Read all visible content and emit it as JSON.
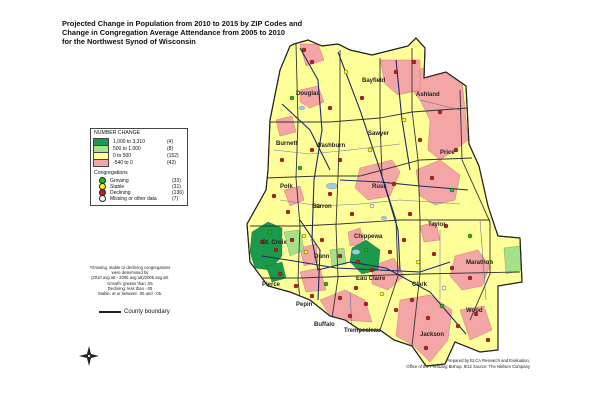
{
  "title": {
    "line1": "Projected Change in Population from 2010 to 2015 by ZIP Codes and",
    "line2": "Change in Congregation Average Attendance from 2005 to 2010",
    "line3": "for the Northwest Synod of Wisconsin"
  },
  "legend": {
    "number_change_heading": "NUMBER CHANGE",
    "classes": [
      {
        "range": "1,000  to  3,310",
        "count": "(4)",
        "color": "#1a9a4a"
      },
      {
        "range": "500  to  1,000",
        "count": "(8)",
        "color": "#a6e08a"
      },
      {
        "range": "0  to  500",
        "count": "(152)",
        "color": "#ffff99"
      },
      {
        "range": "-540  to  0",
        "count": "(42)",
        "color": "#f4a6a6"
      }
    ],
    "congregations_heading": "Congregations",
    "congregations": [
      {
        "label": "Growing",
        "count": "(33)",
        "color": "#22bb22"
      },
      {
        "label": "Stable",
        "count": "(31)",
        "color": "#ffff00"
      },
      {
        "label": "Declining",
        "count": "(136)",
        "color": "#c81e1e"
      },
      {
        "label": "Missing or other data",
        "count": "(7)",
        "color": "#ffffff"
      }
    ]
  },
  "footnote": [
    "*Growing, stable or declining congregations",
    "were determined by",
    "(2010 avg att - 2005 avg att)/2005 avg att.",
    "Growth:  greater than .05",
    "Declining:  less than -.05",
    "Stable:  at or between .05 and -.05."
  ],
  "boundary_label": "County boundary",
  "credit": {
    "line1": "Prepared by ELCA Research and Evaluation,",
    "line2": "Office of the Presiding Bishop.  8/12 Source: The Nielsen Company"
  },
  "counties": [
    {
      "name": "Douglas"
    },
    {
      "name": "Bayfield"
    },
    {
      "name": "Ashland"
    },
    {
      "name": "Washburn"
    },
    {
      "name": "Sawyer"
    },
    {
      "name": "Burnett"
    },
    {
      "name": "Price"
    },
    {
      "name": "Polk"
    },
    {
      "name": "Rusk"
    },
    {
      "name": "Barron"
    },
    {
      "name": "Taylor"
    },
    {
      "name": "St. Croix"
    },
    {
      "name": "Dunn"
    },
    {
      "name": "Chippewa"
    },
    {
      "name": "Marathon"
    },
    {
      "name": "Eau Claire"
    },
    {
      "name": "Clark"
    },
    {
      "name": "Pierce"
    },
    {
      "name": "Pepin"
    },
    {
      "name": "Buffalo"
    },
    {
      "name": "Trempealeau"
    },
    {
      "name": "Wood"
    },
    {
      "name": "Jackson"
    }
  ],
  "colors": {
    "growth_fill": "#ffff99",
    "decline_fill": "#f4a6a6",
    "high_growth_fill": "#1a9a4a",
    "mid_growth_fill": "#a6e08a",
    "county_line": "#333333",
    "road": "#1a2a6a",
    "water": "#9ec9e8"
  }
}
